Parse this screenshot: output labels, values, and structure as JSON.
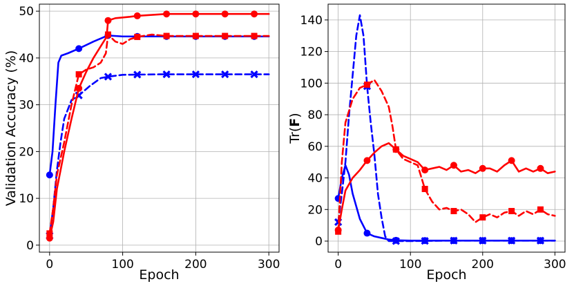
{
  "chart_data": [
    {
      "type": "line",
      "title": "",
      "xlabel": "Epoch",
      "ylabel": "Validation Accuracy (%)",
      "xlim": [
        -14,
        314
      ],
      "ylim": [
        -1.5,
        51.5
      ],
      "xticks": [
        0,
        100,
        200,
        300
      ],
      "yticks": [
        0,
        10,
        20,
        30,
        40,
        50
      ],
      "xtick_labels": [
        "0",
        "100",
        "200",
        "300"
      ],
      "ytick_labels": [
        "0",
        "10",
        "20",
        "30",
        "40",
        "50"
      ],
      "grid": true,
      "series": [
        {
          "color": "#0000ff",
          "style": "solid",
          "marker": "circle",
          "points": [
            [
              0,
              15
            ],
            [
              4,
              20
            ],
            [
              8,
              30
            ],
            [
              12,
              39
            ],
            [
              16,
              40.5
            ],
            [
              25,
              41
            ],
            [
              40,
              42
            ],
            [
              60,
              43.5
            ],
            [
              75,
              44.5
            ],
            [
              80,
              44.8
            ],
            [
              100,
              44.6
            ],
            [
              150,
              44.6
            ],
            [
              200,
              44.6
            ],
            [
              250,
              44.6
            ],
            [
              300,
              44.6
            ]
          ],
          "marker_x": [
            0,
            40,
            80,
            120,
            160,
            200,
            240,
            280
          ]
        },
        {
          "color": "#0000ff",
          "style": "dashed",
          "marker": "x",
          "points": [
            [
              0,
              2
            ],
            [
              5,
              8
            ],
            [
              10,
              16
            ],
            [
              15,
              22
            ],
            [
              20,
              27
            ],
            [
              30,
              31
            ],
            [
              40,
              32
            ],
            [
              55,
              34
            ],
            [
              70,
              35.7
            ],
            [
              80,
              36
            ],
            [
              100,
              36.4
            ],
            [
              150,
              36.5
            ],
            [
              200,
              36.5
            ],
            [
              250,
              36.5
            ],
            [
              300,
              36.5
            ]
          ],
          "marker_x": [
            0,
            40,
            80,
            120,
            160,
            200,
            240,
            280
          ]
        },
        {
          "color": "#ff0000",
          "style": "solid",
          "marker": "circle",
          "points": [
            [
              0,
              1.5
            ],
            [
              5,
              5
            ],
            [
              10,
              12
            ],
            [
              20,
              20
            ],
            [
              30,
              27
            ],
            [
              40,
              33.5
            ],
            [
              50,
              37
            ],
            [
              60,
              40
            ],
            [
              70,
              42.5
            ],
            [
              78,
              44.5
            ],
            [
              80,
              48
            ],
            [
              90,
              48.5
            ],
            [
              110,
              48.8
            ],
            [
              120,
              49
            ],
            [
              160,
              49.4
            ],
            [
              200,
              49.4
            ],
            [
              250,
              49.4
            ],
            [
              300,
              49.4
            ]
          ],
          "marker_x": [
            0,
            40,
            80,
            120,
            160,
            200,
            240,
            280
          ]
        },
        {
          "color": "#ff0000",
          "style": "dashed",
          "marker": "square",
          "points": [
            [
              0,
              2.5
            ],
            [
              5,
              8
            ],
            [
              10,
              15
            ],
            [
              20,
              22
            ],
            [
              30,
              30
            ],
            [
              40,
              36.5
            ],
            [
              50,
              37.5
            ],
            [
              60,
              38
            ],
            [
              70,
              39
            ],
            [
              77,
              41
            ],
            [
              80,
              45
            ],
            [
              90,
              43.5
            ],
            [
              100,
              43
            ],
            [
              110,
              44
            ],
            [
              120,
              44.5
            ],
            [
              140,
              45
            ],
            [
              160,
              44.7
            ],
            [
              200,
              44.7
            ],
            [
              250,
              44.7
            ],
            [
              300,
              44.7
            ]
          ],
          "marker_x": [
            0,
            40,
            80,
            120,
            160,
            200,
            240,
            280
          ]
        }
      ]
    },
    {
      "type": "line",
      "title": "",
      "xlabel": "Epoch",
      "ylabel": "Tr(F)",
      "ylabel_text": "Tr(",
      "ylabel_bold": "F",
      "ylabel_close": ")",
      "xlim": [
        -14,
        314
      ],
      "ylim": [
        -7,
        150
      ],
      "xticks": [
        0,
        100,
        200,
        300
      ],
      "yticks": [
        0,
        20,
        40,
        60,
        80,
        100,
        120,
        140
      ],
      "xtick_labels": [
        "0",
        "100",
        "200",
        "300"
      ],
      "ytick_labels": [
        "0",
        "20",
        "40",
        "60",
        "80",
        "100",
        "120",
        "140"
      ],
      "grid": true,
      "series": [
        {
          "color": "#0000ff",
          "style": "solid",
          "marker": "circle",
          "points": [
            [
              0,
              27
            ],
            [
              5,
              40
            ],
            [
              10,
              48
            ],
            [
              15,
              42
            ],
            [
              20,
              30
            ],
            [
              30,
              14
            ],
            [
              40,
              5
            ],
            [
              50,
              3
            ],
            [
              60,
              2
            ],
            [
              70,
              1
            ],
            [
              80,
              0.5
            ],
            [
              100,
              0.3
            ],
            [
              150,
              0.3
            ],
            [
              200,
              0.3
            ],
            [
              250,
              0.3
            ],
            [
              300,
              0.3
            ]
          ],
          "marker_x": [
            0,
            40,
            80,
            120,
            160,
            200,
            240,
            280
          ]
        },
        {
          "color": "#0000ff",
          "style": "dashed",
          "marker": "x",
          "points": [
            [
              0,
              12
            ],
            [
              5,
              30
            ],
            [
              10,
              50
            ],
            [
              15,
              80
            ],
            [
              20,
              105
            ],
            [
              25,
              130
            ],
            [
              30,
              143
            ],
            [
              35,
              130
            ],
            [
              40,
              98
            ],
            [
              45,
              75
            ],
            [
              50,
              55
            ],
            [
              55,
              30
            ],
            [
              60,
              15
            ],
            [
              65,
              3
            ],
            [
              70,
              0
            ],
            [
              100,
              0
            ],
            [
              150,
              0.3
            ],
            [
              200,
              0.3
            ],
            [
              250,
              0.3
            ],
            [
              300,
              0.3
            ]
          ],
          "marker_x": [
            0,
            40,
            80,
            120,
            160,
            200,
            240,
            280
          ]
        },
        {
          "color": "#ff0000",
          "style": "solid",
          "marker": "circle",
          "points": [
            [
              0,
              7
            ],
            [
              5,
              20
            ],
            [
              10,
              32
            ],
            [
              20,
              40
            ],
            [
              30,
              45
            ],
            [
              40,
              51
            ],
            [
              50,
              56
            ],
            [
              60,
              60
            ],
            [
              70,
              62
            ],
            [
              80,
              58
            ],
            [
              90,
              54
            ],
            [
              100,
              52
            ],
            [
              110,
              50
            ],
            [
              120,
              45
            ],
            [
              130,
              46
            ],
            [
              140,
              47
            ],
            [
              150,
              45
            ],
            [
              160,
              48
            ],
            [
              170,
              44
            ],
            [
              180,
              45
            ],
            [
              190,
              43
            ],
            [
              200,
              46
            ],
            [
              210,
              46
            ],
            [
              220,
              44
            ],
            [
              230,
              48
            ],
            [
              240,
              51
            ],
            [
              250,
              44
            ],
            [
              260,
              46
            ],
            [
              270,
              44
            ],
            [
              280,
              46
            ],
            [
              290,
              43
            ],
            [
              300,
              44
            ]
          ],
          "marker_x": [
            0,
            40,
            80,
            120,
            160,
            200,
            240,
            280
          ]
        },
        {
          "color": "#ff0000",
          "style": "dashed",
          "marker": "square",
          "points": [
            [
              0,
              6
            ],
            [
              5,
              50
            ],
            [
              10,
              75
            ],
            [
              20,
              90
            ],
            [
              30,
              97
            ],
            [
              40,
              99
            ],
            [
              50,
              102
            ],
            [
              60,
              95
            ],
            [
              70,
              85
            ],
            [
              75,
              73
            ],
            [
              80,
              58
            ],
            [
              90,
              52
            ],
            [
              100,
              50
            ],
            [
              110,
              48
            ],
            [
              120,
              33
            ],
            [
              130,
              25
            ],
            [
              140,
              20
            ],
            [
              150,
              21
            ],
            [
              160,
              19
            ],
            [
              170,
              20
            ],
            [
              180,
              17
            ],
            [
              190,
              12
            ],
            [
              200,
              15
            ],
            [
              210,
              17
            ],
            [
              220,
              15
            ],
            [
              230,
              18
            ],
            [
              240,
              19
            ],
            [
              250,
              16
            ],
            [
              260,
              19
            ],
            [
              270,
              17
            ],
            [
              280,
              20
            ],
            [
              290,
              17
            ],
            [
              300,
              16
            ]
          ],
          "marker_x": [
            0,
            40,
            80,
            120,
            160,
            200,
            240,
            280
          ]
        }
      ]
    }
  ]
}
